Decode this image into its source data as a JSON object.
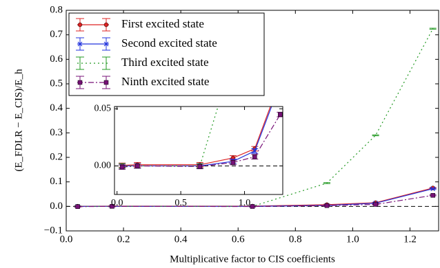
{
  "chart_data": {
    "type": "errorbar-line",
    "xlabel": "Multiplicative factor to CIS coefficients",
    "ylabel": "(E_FDLR − E_CIS)/E_h",
    "x": [
      0.04,
      0.16,
      0.65,
      0.91,
      1.08,
      1.28
    ],
    "series": [
      {
        "name": "First excited state",
        "color": "#dd2222",
        "linestyle": "solid",
        "marker": "o",
        "values": [
          0.0005,
          0.001,
          0.001,
          0.007,
          0.015,
          0.075
        ],
        "errors": [
          0.002,
          0.002,
          0.002,
          0.002,
          0.002,
          0.002
        ]
      },
      {
        "name": "Second excited state",
        "color": "#2233dd",
        "linestyle": "solid",
        "marker": "x",
        "values": [
          0.0,
          0.0,
          0.0,
          0.004,
          0.013,
          0.072
        ],
        "errors": [
          0.002,
          0.002,
          0.002,
          0.002,
          0.002,
          0.002
        ]
      },
      {
        "name": "Third excited state",
        "color": "#229922",
        "linestyle": "dotted",
        "marker": "none",
        "values": [
          0.0,
          0.0,
          0.0,
          0.095,
          0.29,
          0.725
        ],
        "errors": [
          0.002,
          0.002,
          0.002,
          0.002,
          0.002,
          0.002
        ]
      },
      {
        "name": "Ninth excited state",
        "color": "#771177",
        "linestyle": "dashdot",
        "marker": "s",
        "values": [
          -0.001,
          0.0,
          -0.0005,
          0.003,
          0.008,
          0.045
        ],
        "errors": [
          0.002,
          0.002,
          0.002,
          0.002,
          0.002,
          0.002
        ]
      }
    ],
    "xlim": [
      0,
      1.3
    ],
    "xticks": [
      {
        "value": 0,
        "label": "0.0"
      },
      0.2,
      0.4,
      0.6,
      0.8,
      {
        "value": 1,
        "label": "1.0"
      },
      1.2
    ],
    "ylim": [
      -0.1,
      0.8
    ],
    "yticks": [
      {
        "value": -0.1,
        "label": "−0.1"
      },
      {
        "value": 0,
        "label": "0.0"
      },
      0.1,
      0.2,
      0.3,
      0.4,
      0.5,
      0.6,
      0.7,
      0.8
    ],
    "legend": "upper left",
    "inset": {
      "xlim": [
        -0.02,
        1.3
      ],
      "ylim": [
        -0.025,
        0.052
      ],
      "xticks": [
        {
          "value": 0,
          "label": "0.0"
        },
        0.5,
        {
          "value": 1,
          "label": "1.0"
        }
      ],
      "yticks": [
        {
          "value": 0,
          "label": "0.00"
        },
        0.05
      ]
    }
  }
}
